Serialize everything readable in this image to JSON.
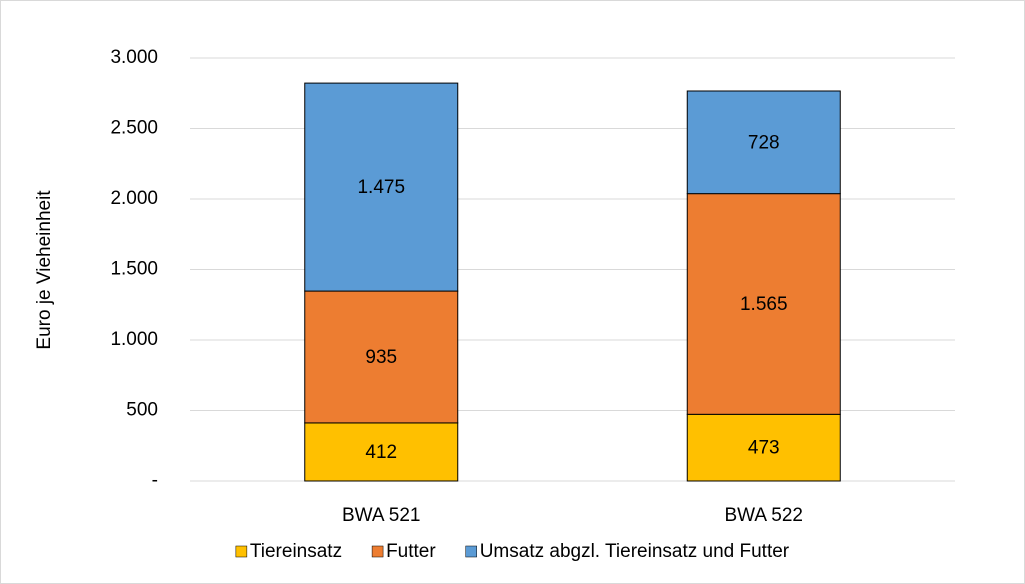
{
  "chart_data": {
    "type": "stacked_bar",
    "y_label": "Euro je Vieheinheit",
    "categories": [
      "BWA 521",
      "BWA 522"
    ],
    "series": [
      {
        "name": "Tiereinsatz",
        "color": "#ffc000",
        "values": [
          412,
          473
        ],
        "value_labels": [
          "412",
          "473"
        ]
      },
      {
        "name": "Futter",
        "color": "#ed7d31",
        "values": [
          935,
          1565
        ],
        "value_labels": [
          "935",
          "1.565"
        ]
      },
      {
        "name": "Umsatz abgzl. Tiereinsatz und Futter",
        "color": "#5b9bd5",
        "values": [
          1475,
          728
        ],
        "value_labels": [
          "1.475",
          "728"
        ]
      }
    ],
    "ylim": [
      0,
      3000
    ],
    "yticks": [
      {
        "value": 0,
        "label": "-"
      },
      500,
      {
        "value": 1000,
        "label": "1.000"
      },
      {
        "value": 1500,
        "label": "1.500"
      },
      {
        "value": 2000,
        "label": "2.000"
      },
      {
        "value": 2500,
        "label": "2.500"
      },
      {
        "value": 3000,
        "label": "3.000"
      }
    ],
    "grid": true,
    "legend": "bottom"
  }
}
